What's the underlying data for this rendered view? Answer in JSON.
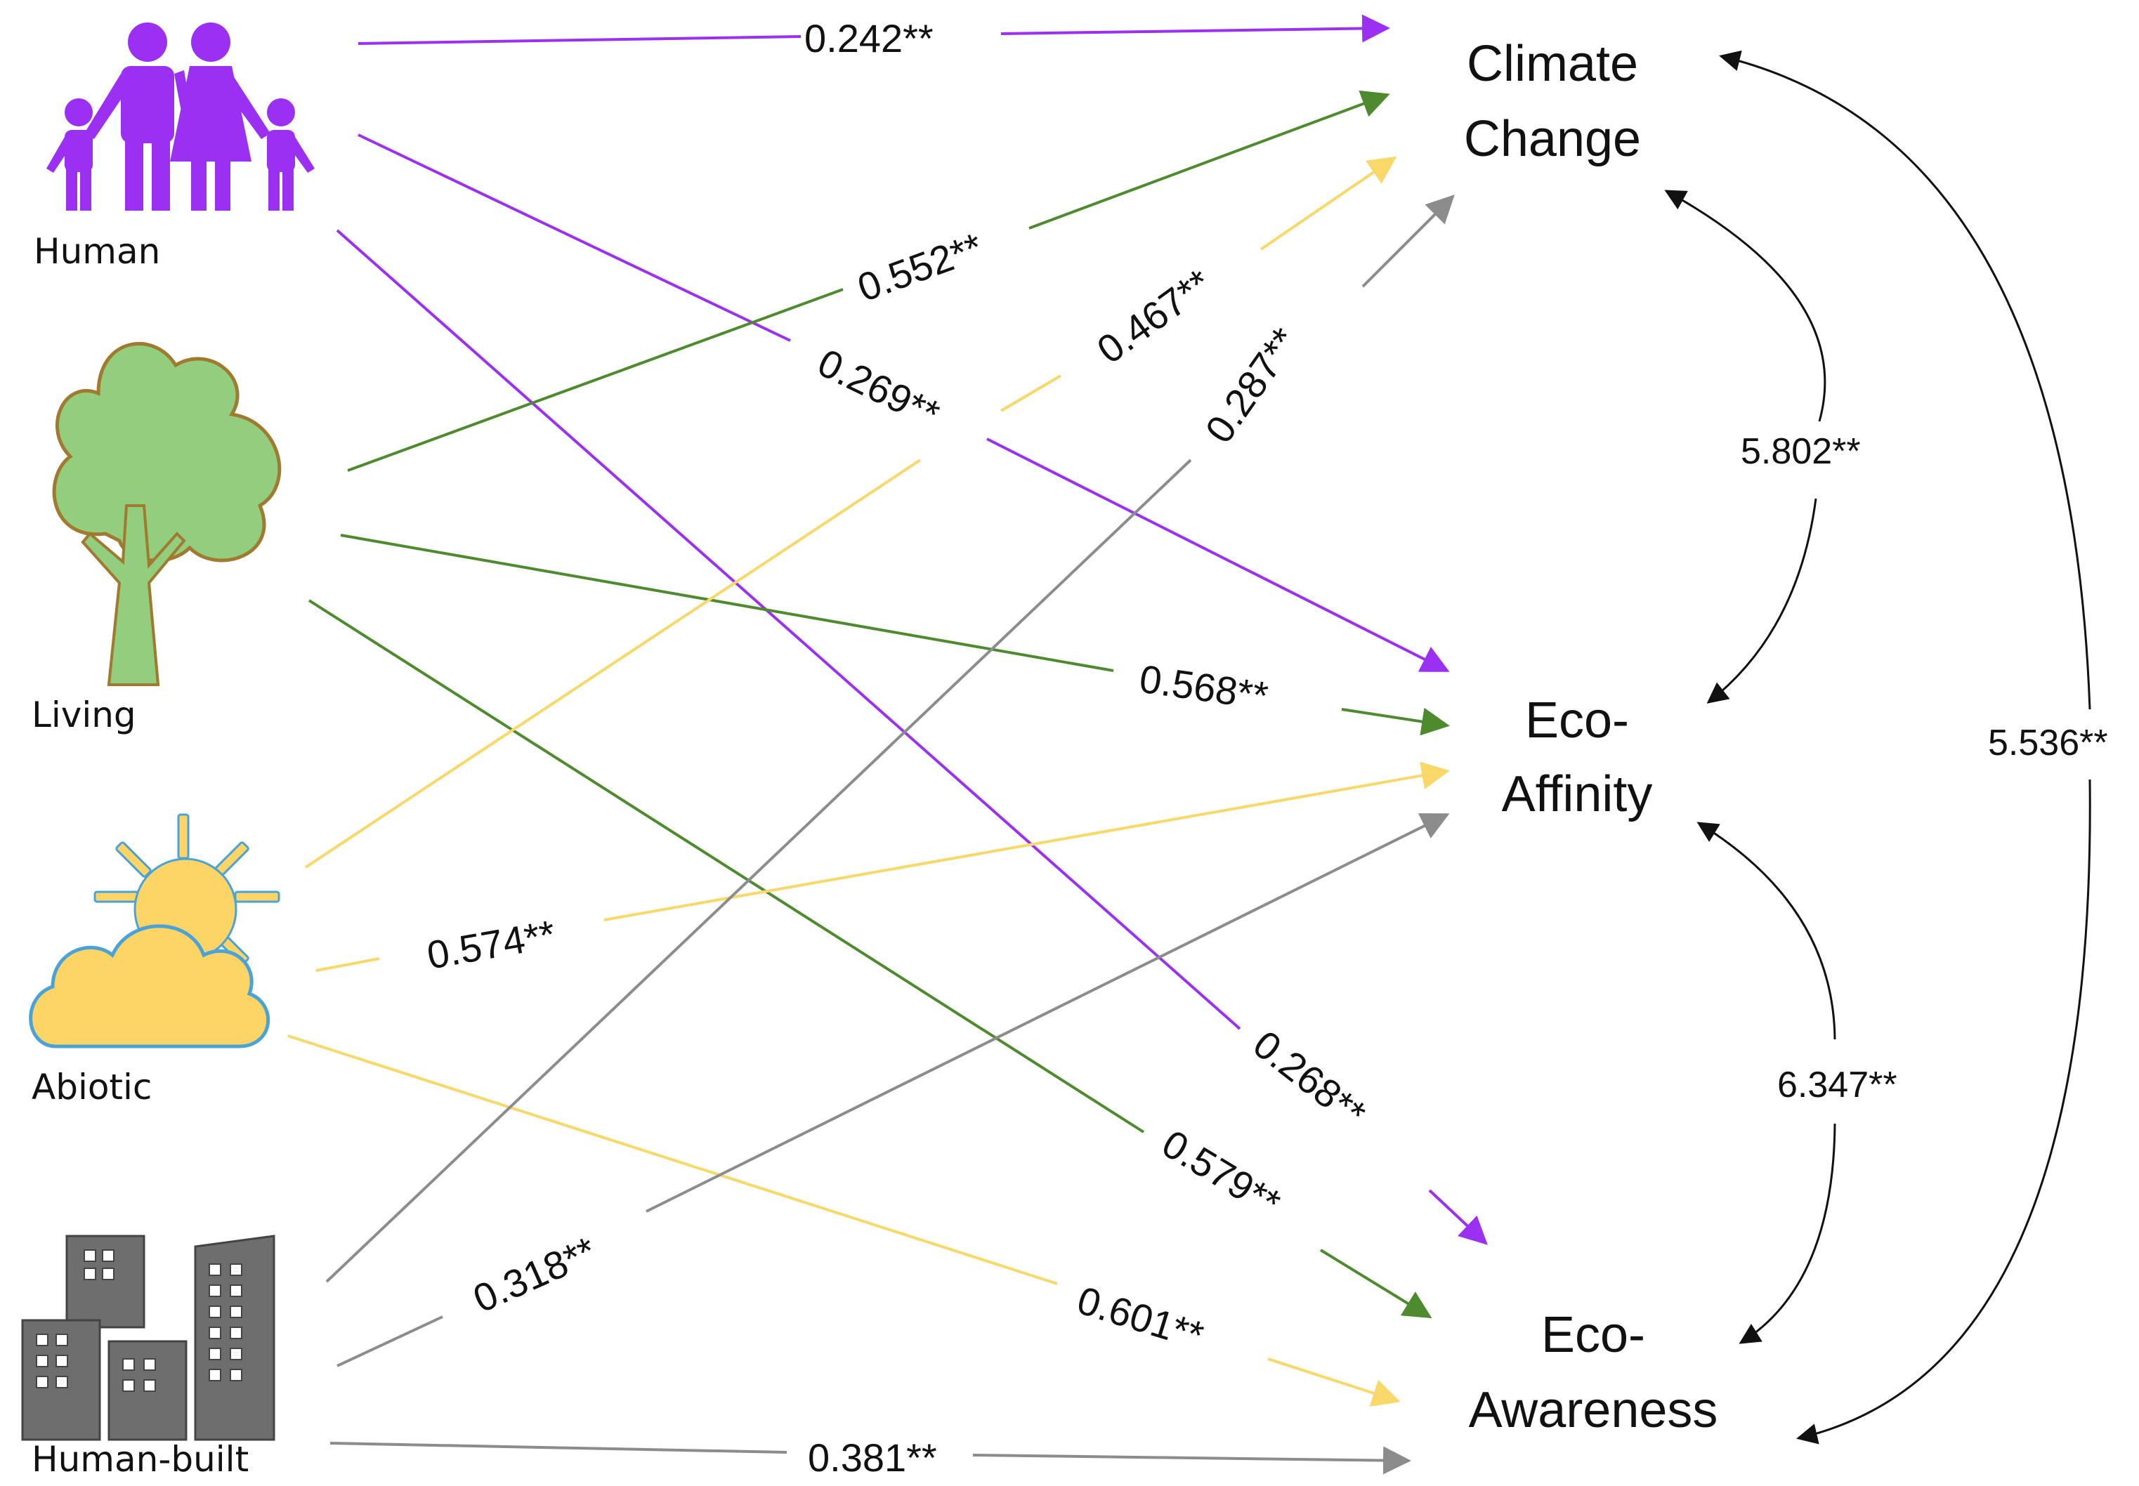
{
  "colors": {
    "human": "#9B30F2",
    "living": "#4E8A2E",
    "abiotic": "#F9D86A",
    "built": "#8C8C8C",
    "covariance": "#111111",
    "tree_fill": "#93CE7E",
    "tree_stroke": "#A07A2E",
    "sun_cloud_fill": "#FDD466",
    "sun_cloud_stroke": "#4AA3D8",
    "building_fill": "#6E6E6E"
  },
  "sources": {
    "human": {
      "label": "Human",
      "icon": "family-icon"
    },
    "living": {
      "label": "Living",
      "icon": "tree-icon"
    },
    "abiotic": {
      "label": "Abiotic",
      "icon": "sun-cloud-icon"
    },
    "built": {
      "label": "Human-built",
      "icon": "buildings-icon"
    }
  },
  "outcomes": {
    "climate": {
      "line1": "Climate",
      "line2": "Change"
    },
    "affinity": {
      "line1": "Eco-",
      "line2": "Affinity"
    },
    "awareness": {
      "line1": "Eco-",
      "line2": "Awareness"
    }
  },
  "paths": [
    {
      "id": "human-climate",
      "from": "Human",
      "to": "Climate Change",
      "coef": "0.242**"
    },
    {
      "id": "human-affinity",
      "from": "Human",
      "to": "Eco-Affinity",
      "coef": "0.269**"
    },
    {
      "id": "human-awareness",
      "from": "Human",
      "to": "Eco-Awareness",
      "coef": "0.268**"
    },
    {
      "id": "living-climate",
      "from": "Living",
      "to": "Climate Change",
      "coef": "0.552**"
    },
    {
      "id": "living-affinity",
      "from": "Living",
      "to": "Eco-Affinity",
      "coef": "0.568**"
    },
    {
      "id": "living-awareness",
      "from": "Living",
      "to": "Eco-Awareness",
      "coef": "0.579**"
    },
    {
      "id": "abiotic-climate",
      "from": "Abiotic",
      "to": "Climate Change",
      "coef": "0.467**"
    },
    {
      "id": "abiotic-affinity",
      "from": "Abiotic",
      "to": "Eco-Affinity",
      "coef": "0.574**"
    },
    {
      "id": "abiotic-awareness",
      "from": "Abiotic",
      "to": "Eco-Awareness",
      "coef": "0.601**"
    },
    {
      "id": "built-climate",
      "from": "Human-built",
      "to": "Climate Change",
      "coef": "0.287**"
    },
    {
      "id": "built-affinity",
      "from": "Human-built",
      "to": "Eco-Affinity",
      "coef": "0.318**"
    },
    {
      "id": "built-awareness",
      "from": "Human-built",
      "to": "Eco-Awareness",
      "coef": "0.381**"
    }
  ],
  "covariances": [
    {
      "id": "climate-affinity",
      "between": [
        "Climate Change",
        "Eco-Affinity"
      ],
      "coef": "5.802**"
    },
    {
      "id": "affinity-awareness",
      "between": [
        "Eco-Affinity",
        "Eco-Awareness"
      ],
      "coef": "6.347**"
    },
    {
      "id": "climate-awareness",
      "between": [
        "Climate Change",
        "Eco-Awareness"
      ],
      "coef": "5.536**"
    }
  ]
}
